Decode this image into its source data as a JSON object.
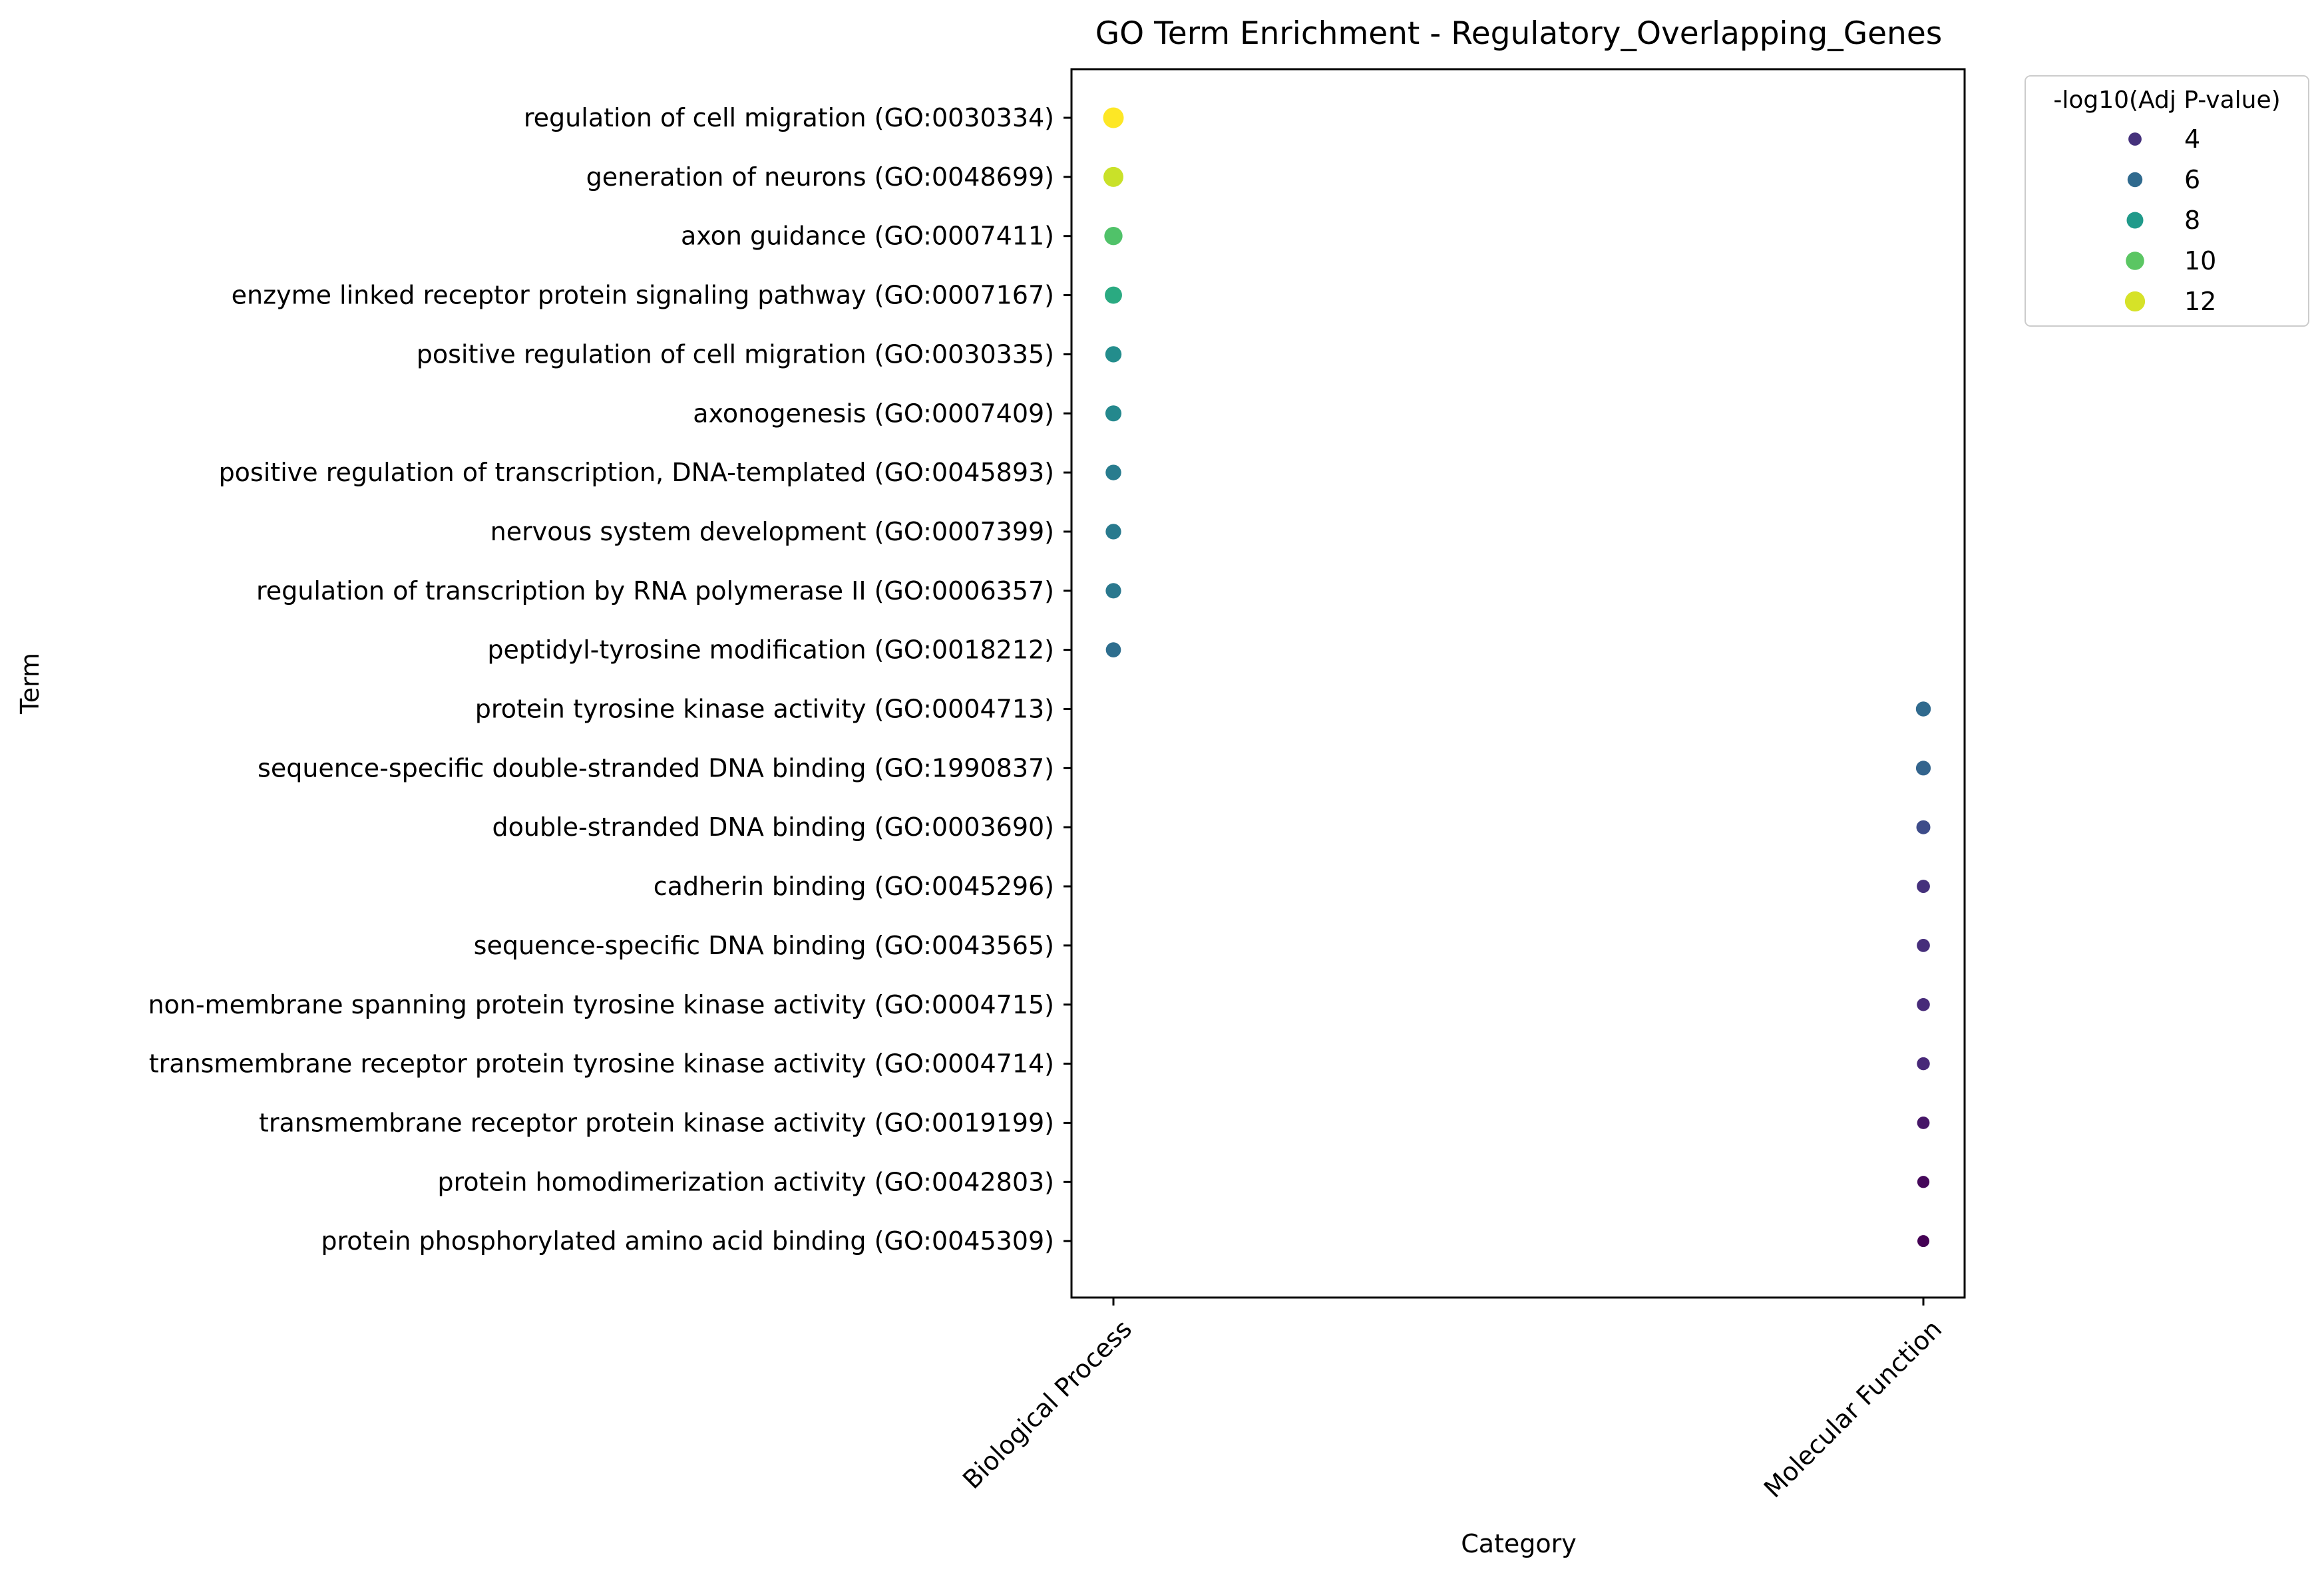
{
  "chart_data": {
    "type": "scatter",
    "title": "GO Term Enrichment - Regulatory_Overlapping_Genes",
    "xlabel": "Category",
    "ylabel": "Term",
    "categories": [
      "Biological Process",
      "Molecular Function"
    ],
    "points": [
      {
        "term": "regulation of cell migration (GO:0030334)",
        "category": "Biological Process",
        "value": 12.6
      },
      {
        "term": "generation of neurons (GO:0048699)",
        "category": "Biological Process",
        "value": 11.8
      },
      {
        "term": "axon guidance (GO:0007411)",
        "category": "Biological Process",
        "value": 9.8
      },
      {
        "term": "enzyme linked receptor protein signaling pathway (GO:0007167)",
        "category": "Biological Process",
        "value": 8.7
      },
      {
        "term": "positive regulation of cell migration (GO:0030335)",
        "category": "Biological Process",
        "value": 7.5
      },
      {
        "term": "axonogenesis (GO:0007409)",
        "category": "Biological Process",
        "value": 7.3
      },
      {
        "term": "positive regulation of transcription, DNA-templated (GO:0045893)",
        "category": "Biological Process",
        "value": 6.8
      },
      {
        "term": "nervous system development (GO:0007399)",
        "category": "Biological Process",
        "value": 6.7
      },
      {
        "term": "regulation of transcription by RNA polymerase II (GO:0006357)",
        "category": "Biological Process",
        "value": 6.6
      },
      {
        "term": "peptidyl-tyrosine modification (GO:0018212)",
        "category": "Biological Process",
        "value": 6.2
      },
      {
        "term": "protein tyrosine kinase activity (GO:0004713)",
        "category": "Molecular Function",
        "value": 6.0
      },
      {
        "term": "sequence-specific double-stranded DNA binding (GO:1990837)",
        "category": "Molecular Function",
        "value": 5.8
      },
      {
        "term": "double-stranded DNA binding (GO:0003690)",
        "category": "Molecular Function",
        "value": 4.9
      },
      {
        "term": "cadherin binding (GO:0045296)",
        "category": "Molecular Function",
        "value": 4.0
      },
      {
        "term": "sequence-specific DNA binding (GO:0043565)",
        "category": "Molecular Function",
        "value": 3.9
      },
      {
        "term": "non-membrane spanning protein tyrosine kinase activity (GO:0004715)",
        "category": "Molecular Function",
        "value": 3.8
      },
      {
        "term": "transmembrane receptor protein tyrosine kinase activity (GO:0004714)",
        "category": "Molecular Function",
        "value": 3.7
      },
      {
        "term": "transmembrane receptor protein kinase activity (GO:0019199)",
        "category": "Molecular Function",
        "value": 3.2
      },
      {
        "term": "protein homodimerization activity (GO:0042803)",
        "category": "Molecular Function",
        "value": 2.8
      },
      {
        "term": "protein phosphorylated amino acid binding (GO:0045309)",
        "category": "Molecular Function",
        "value": 2.6
      }
    ],
    "color_scale": {
      "name": "viridis",
      "vmin": 2.6,
      "vmax": 12.6,
      "stops": [
        "#440154",
        "#482878",
        "#3e4a89",
        "#31688e",
        "#26828e",
        "#1f9e89",
        "#35b779",
        "#6ece58",
        "#b5de2b",
        "#fde725"
      ]
    },
    "legend": {
      "title": "-log10(Adj P-value)",
      "placement": "outside-top-right",
      "entries": [
        {
          "label": "4",
          "value": 4
        },
        {
          "label": "6",
          "value": 6
        },
        {
          "label": "8",
          "value": 8
        },
        {
          "label": "10",
          "value": 10
        },
        {
          "label": "12",
          "value": 12
        }
      ]
    },
    "grid": false
  }
}
